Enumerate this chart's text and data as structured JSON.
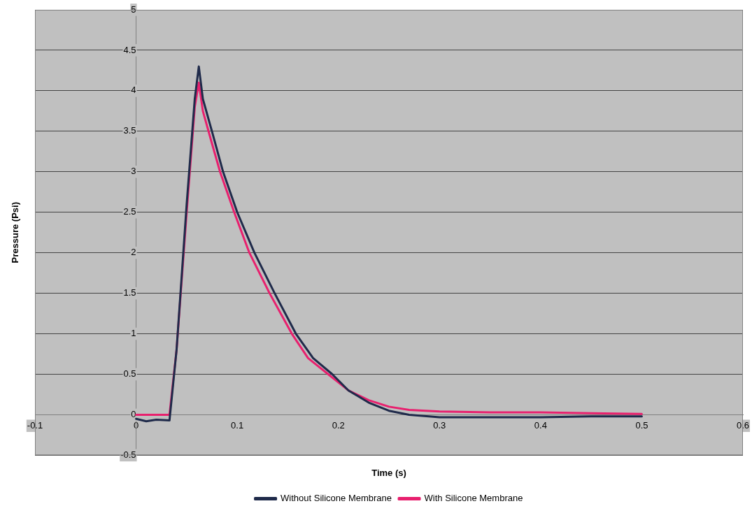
{
  "chart_data": {
    "type": "line",
    "xlabel": "Time (s)",
    "ylabel": "Pressure (Psi)",
    "xlim": [
      -0.1,
      0.6
    ],
    "xticks": [
      -0.1,
      0,
      0.1,
      0.2,
      0.3,
      0.4,
      0.5,
      0.6
    ],
    "ylim": [
      -0.5,
      5
    ],
    "yticks": [
      -0.5,
      0,
      0.5,
      1,
      1.5,
      2,
      2.5,
      3,
      3.5,
      4,
      4.5,
      5
    ],
    "grid": "y",
    "legend": "bottom",
    "marker": "none",
    "line_style": "solid",
    "series": [
      {
        "name": "Without Silicone Membrane",
        "color": "#1f2a4a",
        "x": [
          0,
          0.01,
          0.02,
          0.033,
          0.04,
          0.05,
          0.058,
          0.062,
          0.066,
          0.075,
          0.086,
          0.1,
          0.117,
          0.137,
          0.158,
          0.175,
          0.194,
          0.21,
          0.23,
          0.25,
          0.27,
          0.3,
          0.35,
          0.4,
          0.45,
          0.5
        ],
        "values": [
          -0.05,
          -0.08,
          -0.06,
          -0.07,
          0.8,
          2.6,
          3.9,
          4.3,
          3.9,
          3.5,
          3.0,
          2.5,
          2.0,
          1.5,
          1.0,
          0.7,
          0.5,
          0.3,
          0.15,
          0.05,
          0,
          -0.03,
          -0.03,
          -0.03,
          -0.02,
          -0.02
        ]
      },
      {
        "name": "With Silicone Membrane",
        "color": "#e8206e",
        "x": [
          0,
          0.033,
          0.04,
          0.05,
          0.058,
          0.062,
          0.066,
          0.075,
          0.083,
          0.097,
          0.112,
          0.132,
          0.154,
          0.17,
          0.19,
          0.21,
          0.23,
          0.25,
          0.27,
          0.3,
          0.35,
          0.4,
          0.45,
          0.5
        ],
        "values": [
          0,
          0,
          0.8,
          2.5,
          3.8,
          4.1,
          3.75,
          3.35,
          3.0,
          2.5,
          2.0,
          1.5,
          1.0,
          0.7,
          0.5,
          0.3,
          0.18,
          0.1,
          0.06,
          0.04,
          0.03,
          0.03,
          0.02,
          0.01
        ]
      }
    ]
  }
}
